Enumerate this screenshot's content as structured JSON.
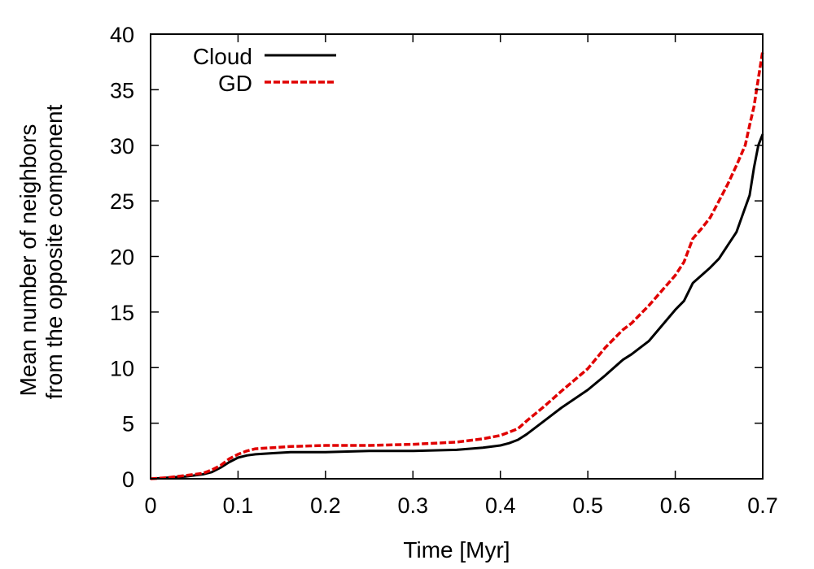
{
  "chart_data": {
    "type": "line",
    "xlabel": "Time [Myr]",
    "ylabel_lines": [
      "Mean number of neighbors",
      "from the opposite component"
    ],
    "xlim": [
      0,
      0.7
    ],
    "ylim": [
      0,
      40
    ],
    "xticks": [
      0,
      0.1,
      0.2,
      0.3,
      0.4,
      0.5,
      0.6,
      0.7
    ],
    "xtick_labels": [
      "0",
      "0.1",
      "0.2",
      "0.3",
      "0.4",
      "0.5",
      "0.6",
      "0.7"
    ],
    "yticks": [
      0,
      5,
      10,
      15,
      20,
      25,
      30,
      35,
      40
    ],
    "ytick_labels": [
      "0",
      "5",
      "10",
      "15",
      "20",
      "25",
      "30",
      "35",
      "40"
    ],
    "grid": false,
    "legend_position": "top-left",
    "series": [
      {
        "name": "Cloud",
        "color": "#000000",
        "dash": "solid",
        "x": [
          0,
          0.02,
          0.04,
          0.06,
          0.07,
          0.08,
          0.09,
          0.1,
          0.11,
          0.12,
          0.14,
          0.16,
          0.2,
          0.25,
          0.3,
          0.35,
          0.38,
          0.4,
          0.41,
          0.42,
          0.43,
          0.45,
          0.47,
          0.5,
          0.52,
          0.54,
          0.55,
          0.57,
          0.6,
          0.61,
          0.62,
          0.63,
          0.64,
          0.65,
          0.66,
          0.67,
          0.68,
          0.685,
          0.69,
          0.695,
          0.7
        ],
        "y": [
          0,
          0.1,
          0.2,
          0.4,
          0.6,
          1.0,
          1.5,
          1.9,
          2.1,
          2.2,
          2.3,
          2.4,
          2.4,
          2.5,
          2.5,
          2.6,
          2.8,
          3.0,
          3.2,
          3.5,
          4.0,
          5.2,
          6.4,
          8.0,
          9.3,
          10.7,
          11.2,
          12.4,
          15.2,
          16.0,
          17.6,
          18.3,
          19.0,
          19.8,
          21.0,
          22.2,
          24.4,
          25.5,
          28.0,
          30.0,
          31.0
        ]
      },
      {
        "name": "GD",
        "color": "#e00000",
        "dash": "dashed",
        "x": [
          0,
          0.02,
          0.04,
          0.06,
          0.07,
          0.08,
          0.09,
          0.1,
          0.11,
          0.12,
          0.14,
          0.16,
          0.2,
          0.25,
          0.3,
          0.35,
          0.38,
          0.4,
          0.41,
          0.42,
          0.43,
          0.45,
          0.47,
          0.5,
          0.52,
          0.54,
          0.55,
          0.57,
          0.6,
          0.61,
          0.62,
          0.63,
          0.64,
          0.65,
          0.66,
          0.67,
          0.68,
          0.685,
          0.69,
          0.695,
          0.7
        ],
        "y": [
          0,
          0.1,
          0.3,
          0.5,
          0.8,
          1.2,
          1.8,
          2.2,
          2.5,
          2.7,
          2.8,
          2.9,
          3.0,
          3.0,
          3.1,
          3.3,
          3.6,
          3.9,
          4.2,
          4.5,
          5.2,
          6.5,
          7.9,
          9.9,
          11.8,
          13.4,
          14.0,
          15.6,
          18.3,
          19.5,
          21.6,
          22.5,
          23.5,
          25.0,
          26.5,
          28.2,
          30.0,
          31.8,
          33.5,
          36.0,
          38.5
        ]
      }
    ]
  }
}
